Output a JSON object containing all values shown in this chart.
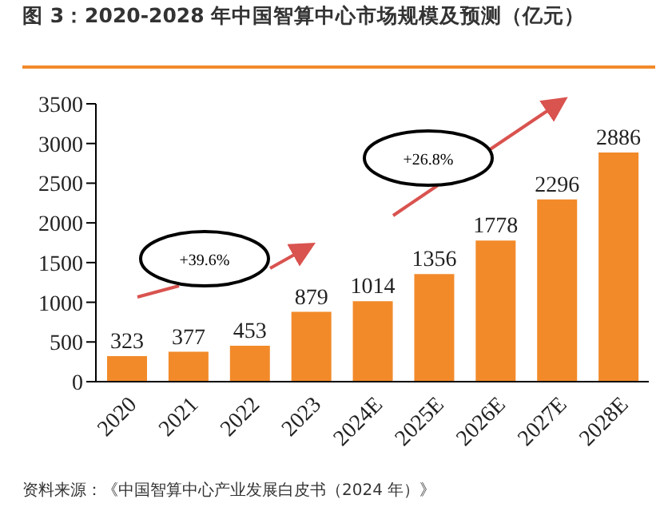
{
  "chart_data": {
    "type": "bar",
    "title": "图 3：2020-2028 年中国智算中心市场规模及预测（亿元）",
    "categories": [
      "2020",
      "2021",
      "2022",
      "2023",
      "2024E",
      "2025E",
      "2026E",
      "2027E",
      "2028E"
    ],
    "values": [
      323,
      377,
      453,
      879,
      1014,
      1356,
      1778,
      2296,
      2886
    ],
    "color": "#f28a2a",
    "ylim": [
      0,
      3500
    ],
    "yticks": [
      0,
      500,
      1000,
      1500,
      2000,
      2500,
      3000,
      3500
    ],
    "grid": false,
    "data_labels": true,
    "annotations": [
      "+39.6%",
      "+26.8%",
      "资料来源：《中国智算中心产业发展白皮书（2024 年）》"
    ]
  }
}
